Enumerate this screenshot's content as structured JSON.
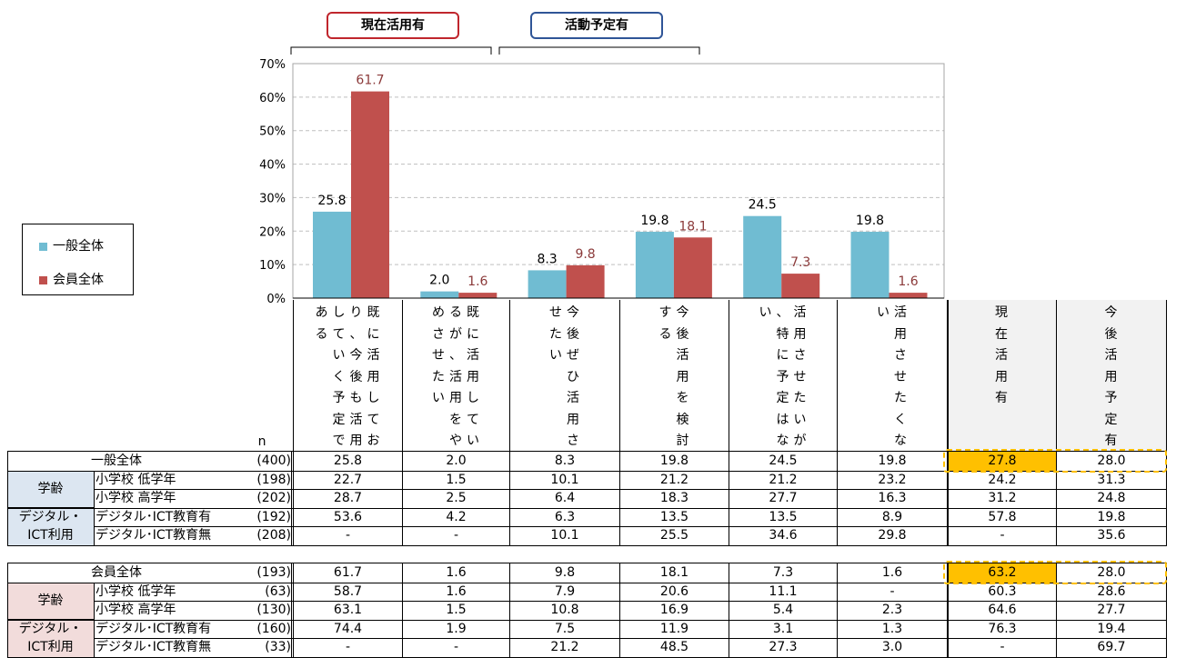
{
  "badges": {
    "current": {
      "label": "現在活用有",
      "color": "#c0262d"
    },
    "planned": {
      "label": "活動予定有",
      "color": "#2f5597"
    }
  },
  "legend": [
    {
      "label": "一般全体",
      "color": "#70bcd2"
    },
    {
      "label": "会員全体",
      "color": "#c0504d"
    }
  ],
  "chart_data": {
    "type": "bar",
    "categories": [
      "既に活用しており、今後も活用していく予定である",
      "既に活用しているが、活用をやめさせたい",
      "今後ぜひ活用させたい",
      "今後活用を検討する",
      "活用させたいが、特に予定はない",
      "活用させたくない"
    ],
    "series": [
      {
        "name": "一般全体",
        "values": [
          25.8,
          2.0,
          8.3,
          19.8,
          24.5,
          19.8
        ],
        "color": "#70bcd2",
        "label_color": "#000000"
      },
      {
        "name": "会員全体",
        "values": [
          61.7,
          1.6,
          9.8,
          18.1,
          7.3,
          1.6
        ],
        "color": "#c0504d",
        "label_color": "#8b3a3a"
      }
    ],
    "yticks": [
      "0%",
      "10%",
      "20%",
      "30%",
      "40%",
      "50%",
      "60%",
      "70%"
    ],
    "ylim": [
      0,
      70
    ],
    "grid": true,
    "legend_position": "left"
  },
  "table": {
    "n_header": "n",
    "column_headers": [
      "既に活用しており、今後も活用していく予定である",
      "既に活用しているが、活用をやめさせたい",
      "今後ぜひ活用させたい",
      "今後活用を検討する",
      "活用させたいが、特に予定はない",
      "活用させたくない",
      "現在活用有",
      "今後活用予定有"
    ],
    "groups": [
      {
        "name": "一般全体",
        "rows": [
          {
            "group": "",
            "label": "一般全体",
            "n": "(400)",
            "values": [
              "25.8",
              "2.0",
              "8.3",
              "19.8",
              "24.5",
              "19.8",
              "27.8",
              "28.0"
            ]
          },
          {
            "group": "学齢",
            "label": "小学校  低学年",
            "n": "(198)",
            "values": [
              "22.7",
              "1.5",
              "10.1",
              "21.2",
              "21.2",
              "23.2",
              "24.2",
              "31.3"
            ]
          },
          {
            "group": "",
            "label": "小学校  高学年",
            "n": "(202)",
            "values": [
              "28.7",
              "2.5",
              "6.4",
              "18.3",
              "27.7",
              "16.3",
              "31.2",
              "24.8"
            ]
          },
          {
            "group": "デジタル・ICT利用",
            "label": "デジタル･ICT教育有",
            "n": "(192)",
            "values": [
              "53.6",
              "4.2",
              "6.3",
              "13.5",
              "13.5",
              "8.9",
              "57.8",
              "19.8"
            ]
          },
          {
            "group": "",
            "label": "デジタル･ICT教育無",
            "n": "(208)",
            "values": [
              "-",
              "-",
              "10.1",
              "25.5",
              "34.6",
              "29.8",
              "-",
              "35.6"
            ]
          }
        ]
      },
      {
        "name": "会員全体",
        "rows": [
          {
            "group": "",
            "label": "会員全体",
            "n": "(193)",
            "values": [
              "61.7",
              "1.6",
              "9.8",
              "18.1",
              "7.3",
              "1.6",
              "63.2",
              "28.0"
            ]
          },
          {
            "group": "学齢",
            "label": "小学校  低学年",
            "n": "(63)",
            "values": [
              "58.7",
              "1.6",
              "7.9",
              "20.6",
              "11.1",
              "-",
              "60.3",
              "28.6"
            ]
          },
          {
            "group": "",
            "label": "小学校  高学年",
            "n": "(130)",
            "values": [
              "63.1",
              "1.5",
              "10.8",
              "16.9",
              "5.4",
              "2.3",
              "64.6",
              "27.7"
            ]
          },
          {
            "group": "デジタル・ICT利用",
            "label": "デジタル･ICT教育有",
            "n": "(160)",
            "values": [
              "74.4",
              "1.9",
              "7.5",
              "11.9",
              "3.1",
              "1.3",
              "76.3",
              "19.4"
            ]
          },
          {
            "group": "",
            "label": "デジタル･ICT教育無",
            "n": "(33)",
            "values": [
              "-",
              "-",
              "21.2",
              "48.5",
              "27.3",
              "3.0",
              "-",
              "69.7"
            ]
          }
        ]
      }
    ],
    "group_labels": {
      "age": "学齢",
      "ict_line1": "デジタル・",
      "ict_line2": "ICT利用"
    },
    "highlight_color": "#ffc000",
    "gray_header_bg": "#f2f2f2",
    "group_bg_general": "#dce6f1",
    "group_bg_member": "#f2dcdb"
  }
}
